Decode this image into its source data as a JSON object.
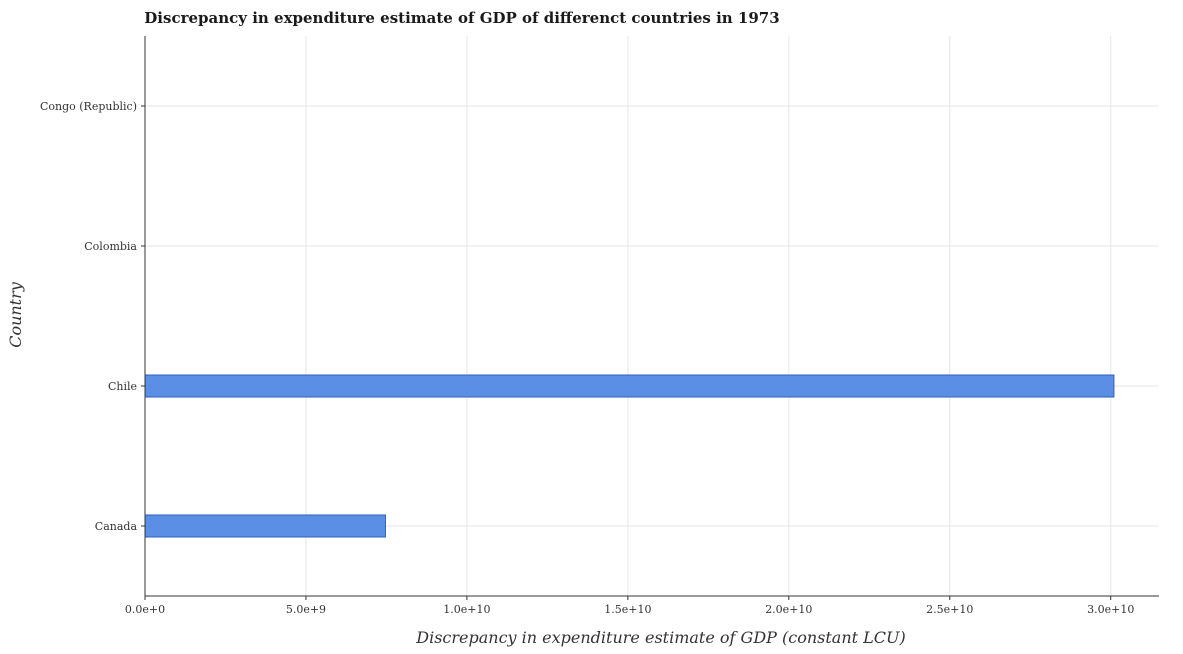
{
  "chart_data": {
    "type": "bar",
    "orientation": "horizontal",
    "title": "Discrepancy in expenditure estimate of GDP of differenct countries in 1973",
    "xlabel": "Discrepancy in expenditure estimate of GDP (constant LCU)",
    "ylabel": "Country",
    "categories": [
      "Canada",
      "Chile",
      "Colombia",
      "Congo (Republic)"
    ],
    "values": [
      7470000000,
      30100000000,
      0,
      0
    ],
    "xlim": [
      0,
      31500000000
    ],
    "x_ticks": [
      0,
      5000000000,
      10000000000,
      15000000000,
      20000000000,
      25000000000,
      30000000000
    ],
    "x_tick_labels": [
      "0.0e+0",
      "5.0e+9",
      "1.0e+10",
      "1.5e+10",
      "2.0e+10",
      "2.5e+10",
      "3.0e+10"
    ],
    "grid": true,
    "bar_color": "#5b8fe6",
    "bar_edge_color": "#2e5fbd"
  }
}
